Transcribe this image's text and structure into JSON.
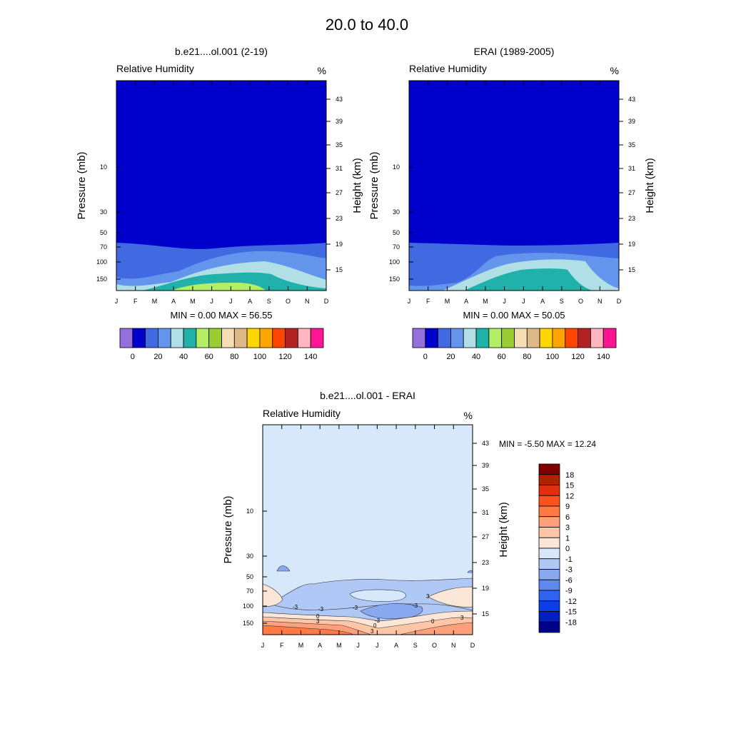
{
  "main_title": "20.0 to  40.0",
  "chart_data": [
    {
      "type": "contour",
      "title": "b.e21....ol.001 (2-19)",
      "left_label": "Relative Humidity",
      "right_label": "%",
      "ylabel": "Pressure (mb)",
      "ylabel_right": "Height (km)",
      "x": [
        "J",
        "F",
        "M",
        "A",
        "M",
        "J",
        "J",
        "A",
        "S",
        "O",
        "N",
        "D"
      ],
      "pressure_ticks": [
        "10",
        "30",
        "50",
        "70",
        "100",
        "150"
      ],
      "height_ticks": [
        "43",
        "39",
        "35",
        "31",
        "27",
        "23",
        "19",
        "15"
      ],
      "stats": "MIN =   0.00  MAX =  56.55",
      "colorbar_colors": [
        "#9370DB",
        "#0000CD",
        "#4169E1",
        "#6495ED",
        "#B0E0E6",
        "#20B2AA",
        "#B4EE64",
        "#9ACD32",
        "#F5DEB3",
        "#DEB887",
        "#FFD700",
        "#FFA500",
        "#FF4500",
        "#B22222",
        "#FFB6C1",
        "#FF1493"
      ],
      "colorbar_labels": [
        "0",
        "20",
        "40",
        "60",
        "80",
        "100",
        "120",
        "140"
      ]
    },
    {
      "type": "contour",
      "title": "ERAI (1989-2005)",
      "left_label": "Relative Humidity",
      "right_label": "%",
      "ylabel": "Pressure (mb)",
      "ylabel_right": "Height (km)",
      "x": [
        "J",
        "F",
        "M",
        "A",
        "M",
        "J",
        "J",
        "A",
        "S",
        "O",
        "N",
        "D"
      ],
      "pressure_ticks": [
        "10",
        "30",
        "50",
        "70",
        "100",
        "150"
      ],
      "height_ticks": [
        "43",
        "39",
        "35",
        "31",
        "27",
        "23",
        "19",
        "15"
      ],
      "stats": "MIN =   0.00  MAX =  50.05",
      "colorbar_colors": [
        "#9370DB",
        "#0000CD",
        "#4169E1",
        "#6495ED",
        "#B0E0E6",
        "#20B2AA",
        "#B4EE64",
        "#9ACD32",
        "#F5DEB3",
        "#DEB887",
        "#FFD700",
        "#FFA500",
        "#FF4500",
        "#B22222",
        "#FFB6C1",
        "#FF1493"
      ],
      "colorbar_labels": [
        "0",
        "20",
        "40",
        "60",
        "80",
        "100",
        "120",
        "140"
      ]
    },
    {
      "type": "contour",
      "title": "b.e21....ol.001 - ERAI",
      "left_label": "Relative Humidity",
      "right_label": "%",
      "ylabel": "Pressure (mb)",
      "ylabel_right": "Height (km)",
      "x": [
        "J",
        "F",
        "M",
        "A",
        "M",
        "J",
        "J",
        "A",
        "S",
        "O",
        "N",
        "D"
      ],
      "pressure_ticks": [
        "10",
        "30",
        "50",
        "70",
        "100",
        "150"
      ],
      "height_ticks": [
        "43",
        "39",
        "35",
        "31",
        "27",
        "23",
        "19",
        "15"
      ],
      "stats": "MIN =  -5.50  MAX =  12.24",
      "contour_labels": [
        "-3",
        "-3",
        "-3",
        "-3",
        "0",
        "3",
        "-3",
        "0",
        "3",
        "3",
        "0",
        "3"
      ],
      "colorbar_colors": [
        "#7F0000",
        "#B22000",
        "#E03010",
        "#FF5020",
        "#FF7A45",
        "#FFA07A",
        "#FFC6A5",
        "#FCE6D8",
        "#D6E8FA",
        "#B0C8F5",
        "#88A8F0",
        "#5C88F0",
        "#2F63F0",
        "#0A3FE6",
        "#0020C0",
        "#00008B"
      ],
      "colorbar_labels": [
        "18",
        "15",
        "12",
        "9",
        "6",
        "3",
        "1",
        "0",
        "-1",
        "-3",
        "-6",
        "-9",
        "-12",
        "-15",
        "-18"
      ]
    }
  ]
}
